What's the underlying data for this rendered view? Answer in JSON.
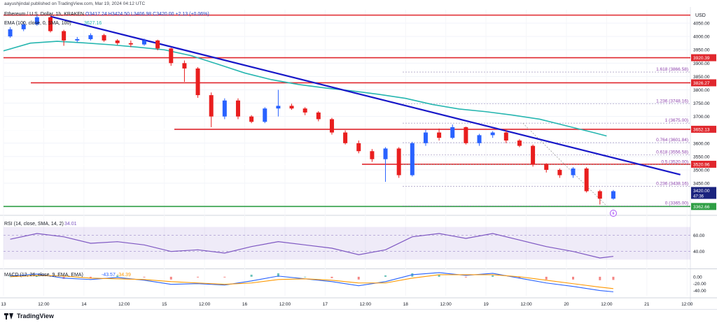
{
  "header": {
    "caption": "aayushjindal published on TradingView.com, Mar 19, 2024 04:12 UTC"
  },
  "legend": {
    "symbol": "Ethereum / U.S. Dollar, 1h, KRAKEN",
    "ohlc": "O3417.24  H3424.50  L3406.98  C3420.00  +2.13 (+0.06%)",
    "ema_label": "EMA (100, close, 0, SMA, 100)",
    "ema_value": "3627.16"
  },
  "rsi_legend": {
    "label": "RSI (14, close, SMA, 14, 2)",
    "value": "34.01"
  },
  "macd_legend": {
    "label": "MACD (12, 26, close, 9, EMA, EMA)",
    "value1": "-43.57",
    "value2": "-34.39"
  },
  "footer": {
    "brand": "TradingView"
  },
  "colors": {
    "up": "#2962ff",
    "down": "#e91e1e",
    "ema": "#26b6b0",
    "trendline": "#1717c8",
    "level": "#e0272d",
    "support": "#2e9e44",
    "fib": "#8e44ad",
    "rsi": "#7e57c2",
    "macd": "#2962ff",
    "signal": "#ff9800"
  },
  "chart_data": [
    {
      "type": "candlestick",
      "title": "Ethereum / U.S. Dollar, 1h, KRAKEN",
      "currency": "USD",
      "x_ticks": [
        "13",
        "12:00",
        "14",
        "12:00",
        "15",
        "12:00",
        "16",
        "12:00",
        "17",
        "12:00",
        "18",
        "12:00",
        "19",
        "12:00",
        "20",
        "12:00",
        "21",
        "12:00"
      ],
      "y_ticks": [
        3450,
        3500,
        3550,
        3600,
        3650,
        3700,
        3750,
        3800,
        3850,
        3900,
        3950,
        4000,
        4050
      ],
      "ylim": [
        3340,
        4100
      ],
      "x_range_hours": [
        0,
        205
      ],
      "price_levels": [
        {
          "price": 4080.0,
          "label": ""
        },
        {
          "price": 3920.39,
          "label": "3920.39"
        },
        {
          "price": 3826.27,
          "label": "3826.27"
        },
        {
          "price": 3652.13,
          "label": "3652.13"
        },
        {
          "price": 3520.96,
          "label": "3520.96"
        }
      ],
      "support_level": {
        "price": 3362.66,
        "label": "3362.66"
      },
      "last_price": {
        "price": 3420.0,
        "label": "3420.00",
        "countdown": "47:36"
      },
      "fibonacci": [
        {
          "ratio": "1.618",
          "price": 3866.58
        },
        {
          "ratio": "1.236",
          "price": 3748.16
        },
        {
          "ratio": "1",
          "price": 3675.0
        },
        {
          "ratio": "0.764",
          "price": 3601.84
        },
        {
          "ratio": "0.618",
          "price": 3556.58
        },
        {
          "ratio": "0.5",
          "price": 3520.0
        },
        {
          "ratio": "0.236",
          "price": 3438.16
        },
        {
          "ratio": "0",
          "price": 3365.0
        }
      ],
      "trendline": [
        {
          "t": 14,
          "price": 4075
        },
        {
          "t": 202,
          "price": 3482
        }
      ],
      "ema": {
        "t": [
          0,
          8,
          16,
          24,
          32,
          40,
          48,
          56,
          64,
          72,
          80,
          88,
          96,
          104,
          112,
          120,
          128,
          136,
          144,
          152,
          160,
          168,
          176,
          180
        ],
        "values": [
          3946,
          3975,
          3982,
          3976,
          3969,
          3960,
          3950,
          3928,
          3896,
          3863,
          3838,
          3820,
          3807,
          3796,
          3783,
          3768,
          3745,
          3728,
          3718,
          3705,
          3690,
          3665,
          3640,
          3627
        ]
      },
      "candles": {
        "t": [
          0,
          4,
          8,
          12,
          16,
          20,
          24,
          28,
          32,
          36,
          40,
          44,
          48,
          52,
          56,
          60,
          64,
          68,
          72,
          76,
          80,
          84,
          88,
          92,
          96,
          100,
          104,
          108,
          112,
          116,
          120,
          124,
          128,
          132,
          136,
          140,
          144,
          148,
          152,
          156,
          160,
          164,
          168,
          172,
          176,
          180
        ],
        "open": [
          4000,
          4027,
          4045,
          4072,
          4020,
          3985,
          3990,
          4005,
          3985,
          3975,
          3970,
          3985,
          3955,
          3900,
          3880,
          3780,
          3700,
          3760,
          3700,
          3680,
          3730,
          3740,
          3730,
          3715,
          3690,
          3640,
          3600,
          3570,
          3540,
          3580,
          3480,
          3600,
          3640,
          3620,
          3660,
          3600,
          3630,
          3640,
          3610,
          3590,
          3520,
          3500,
          3480,
          3505,
          3420,
          3392
        ],
        "close": [
          4027,
          4045,
          4072,
          4020,
          3985,
          3990,
          4005,
          3985,
          3975,
          3970,
          3985,
          3955,
          3900,
          3880,
          3780,
          3700,
          3760,
          3700,
          3680,
          3730,
          3740,
          3730,
          3715,
          3690,
          3640,
          3600,
          3570,
          3540,
          3580,
          3480,
          3600,
          3640,
          3620,
          3660,
          3600,
          3630,
          3640,
          3610,
          3590,
          3520,
          3500,
          3480,
          3505,
          3420,
          3392,
          3420
        ],
        "high": [
          4035,
          4055,
          4080,
          4075,
          4025,
          3998,
          4012,
          4010,
          3990,
          3985,
          3992,
          3988,
          3958,
          3910,
          3885,
          3790,
          3768,
          3768,
          3705,
          3735,
          3800,
          3748,
          3735,
          3720,
          3695,
          3648,
          3610,
          3578,
          3585,
          3585,
          3605,
          3650,
          3655,
          3670,
          3662,
          3635,
          3645,
          3650,
          3615,
          3595,
          3525,
          3505,
          3510,
          3510,
          3425,
          3424.5
        ],
        "low": [
          3995,
          4020,
          4040,
          4015,
          3965,
          3978,
          3985,
          3980,
          3968,
          3960,
          3965,
          3948,
          3890,
          3830,
          3770,
          3660,
          3690,
          3690,
          3675,
          3675,
          3700,
          3725,
          3705,
          3682,
          3632,
          3595,
          3562,
          3530,
          3455,
          3470,
          3475,
          3590,
          3610,
          3615,
          3595,
          3590,
          3620,
          3600,
          3585,
          3512,
          3490,
          3470,
          3470,
          3415,
          3370,
          3388
        ]
      }
    },
    {
      "type": "line",
      "title": "RSI (14, close, SMA, 14, 2)",
      "y_ticks": [
        40.0,
        60.0
      ],
      "ylim": [
        20,
        80
      ],
      "band": [
        30,
        70
      ],
      "x": [
        0,
        8,
        16,
        24,
        32,
        40,
        48,
        56,
        64,
        72,
        80,
        88,
        96,
        104,
        112,
        120,
        128,
        136,
        144,
        152,
        160,
        168,
        176,
        180
      ],
      "series": [
        {
          "values": [
            55,
            62,
            58,
            50,
            52,
            48,
            40,
            42,
            38,
            46,
            52,
            48,
            44,
            36,
            42,
            58,
            62,
            56,
            62,
            54,
            46,
            40,
            32,
            34
          ]
        }
      ]
    },
    {
      "type": "line",
      "title": "MACD (12, 26, close, 9, EMA, EMA)",
      "y_ticks": [
        0.0,
        -20.0,
        -40.0
      ],
      "ylim": [
        -55,
        20
      ],
      "x": [
        0,
        8,
        16,
        24,
        32,
        40,
        48,
        56,
        64,
        72,
        80,
        88,
        96,
        104,
        112,
        120,
        128,
        136,
        144,
        152,
        160,
        168,
        176,
        180
      ],
      "series": [
        {
          "values": [
            2,
            8,
            -4,
            -8,
            -2,
            -10,
            -22,
            -20,
            -24,
            -12,
            2,
            -6,
            -14,
            -26,
            -14,
            6,
            12,
            4,
            10,
            -4,
            -18,
            -28,
            -40,
            -43.57
          ]
        },
        {
          "values": [
            0,
            4,
            2,
            -4,
            -6,
            -8,
            -14,
            -18,
            -22,
            -18,
            -8,
            -6,
            -10,
            -18,
            -18,
            -4,
            6,
            6,
            6,
            0,
            -10,
            -20,
            -30,
            -34.39
          ]
        }
      ]
    }
  ]
}
